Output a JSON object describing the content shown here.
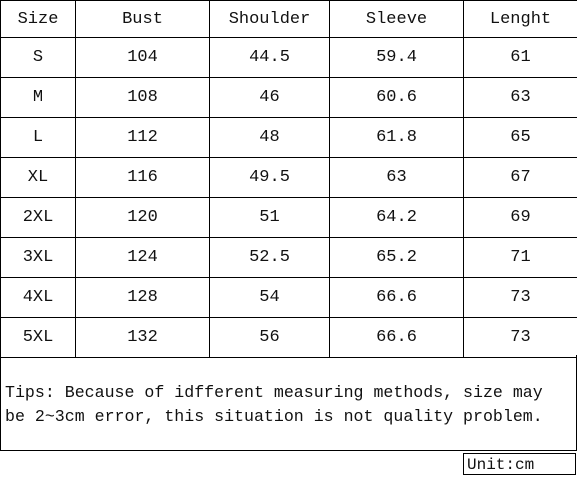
{
  "table": {
    "header": [
      "Size",
      "Bust",
      "Shoulder",
      "Sleeve",
      "Lenght"
    ],
    "rows": [
      [
        "S",
        "104",
        "44.5",
        "59.4",
        "61"
      ],
      [
        "M",
        "108",
        "46",
        "60.6",
        "63"
      ],
      [
        "L",
        "112",
        "48",
        "61.8",
        "65"
      ],
      [
        "XL",
        "116",
        "49.5",
        "63",
        "67"
      ],
      [
        "2XL",
        "120",
        "51",
        "64.2",
        "69"
      ],
      [
        "3XL",
        "124",
        "52.5",
        "65.2",
        "71"
      ],
      [
        "4XL",
        "128",
        "54",
        "66.6",
        "73"
      ],
      [
        "5XL",
        "132",
        "56",
        "66.6",
        "73"
      ]
    ]
  },
  "tips": [
    "Tips: Because of idfferent measuring methods, size may",
    "be 2~3cm error, this situation is not quality problem."
  ],
  "unit": "Unit:cm"
}
